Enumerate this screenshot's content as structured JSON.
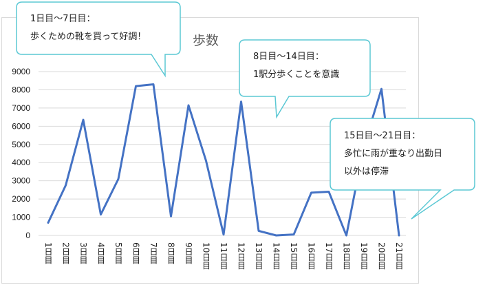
{
  "chart_data": {
    "type": "line",
    "title": "歩数",
    "categories": [
      "1日目",
      "2日目",
      "3日目",
      "4日目",
      "5日目",
      "6日目",
      "7日目",
      "8日目",
      "9日目",
      "10日目",
      "11日目",
      "12日目",
      "13日目",
      "14日目",
      "15日目",
      "16日目",
      "17日目",
      "18日目",
      "19日目",
      "20日目",
      "21日目"
    ],
    "series": [
      {
        "values": [
          700,
          2750,
          6350,
          1150,
          3100,
          8200,
          8300,
          1050,
          7150,
          4100,
          50,
          7350,
          250,
          0,
          50,
          2350,
          2400,
          0,
          4900,
          8050,
          0
        ]
      }
    ],
    "ylim": [
      0,
      9000
    ],
    "yticks": [
      "0",
      "1000",
      "2000",
      "3000",
      "4000",
      "5000",
      "6000",
      "7000",
      "8000",
      "9000"
    ],
    "grid": true,
    "color": "#4472c4"
  },
  "callouts": [
    {
      "lines": [
        "1日目〜7日目：",
        "歩くための靴を買って好調！"
      ]
    },
    {
      "lines": [
        "8日目〜14日目：",
        "1駅分歩くことを意識"
      ]
    },
    {
      "lines": [
        "15日目〜21日目：",
        "多忙に雨が重なり出勤日",
        "以外は停滞"
      ]
    }
  ],
  "callout_border": "#5bc8d4"
}
